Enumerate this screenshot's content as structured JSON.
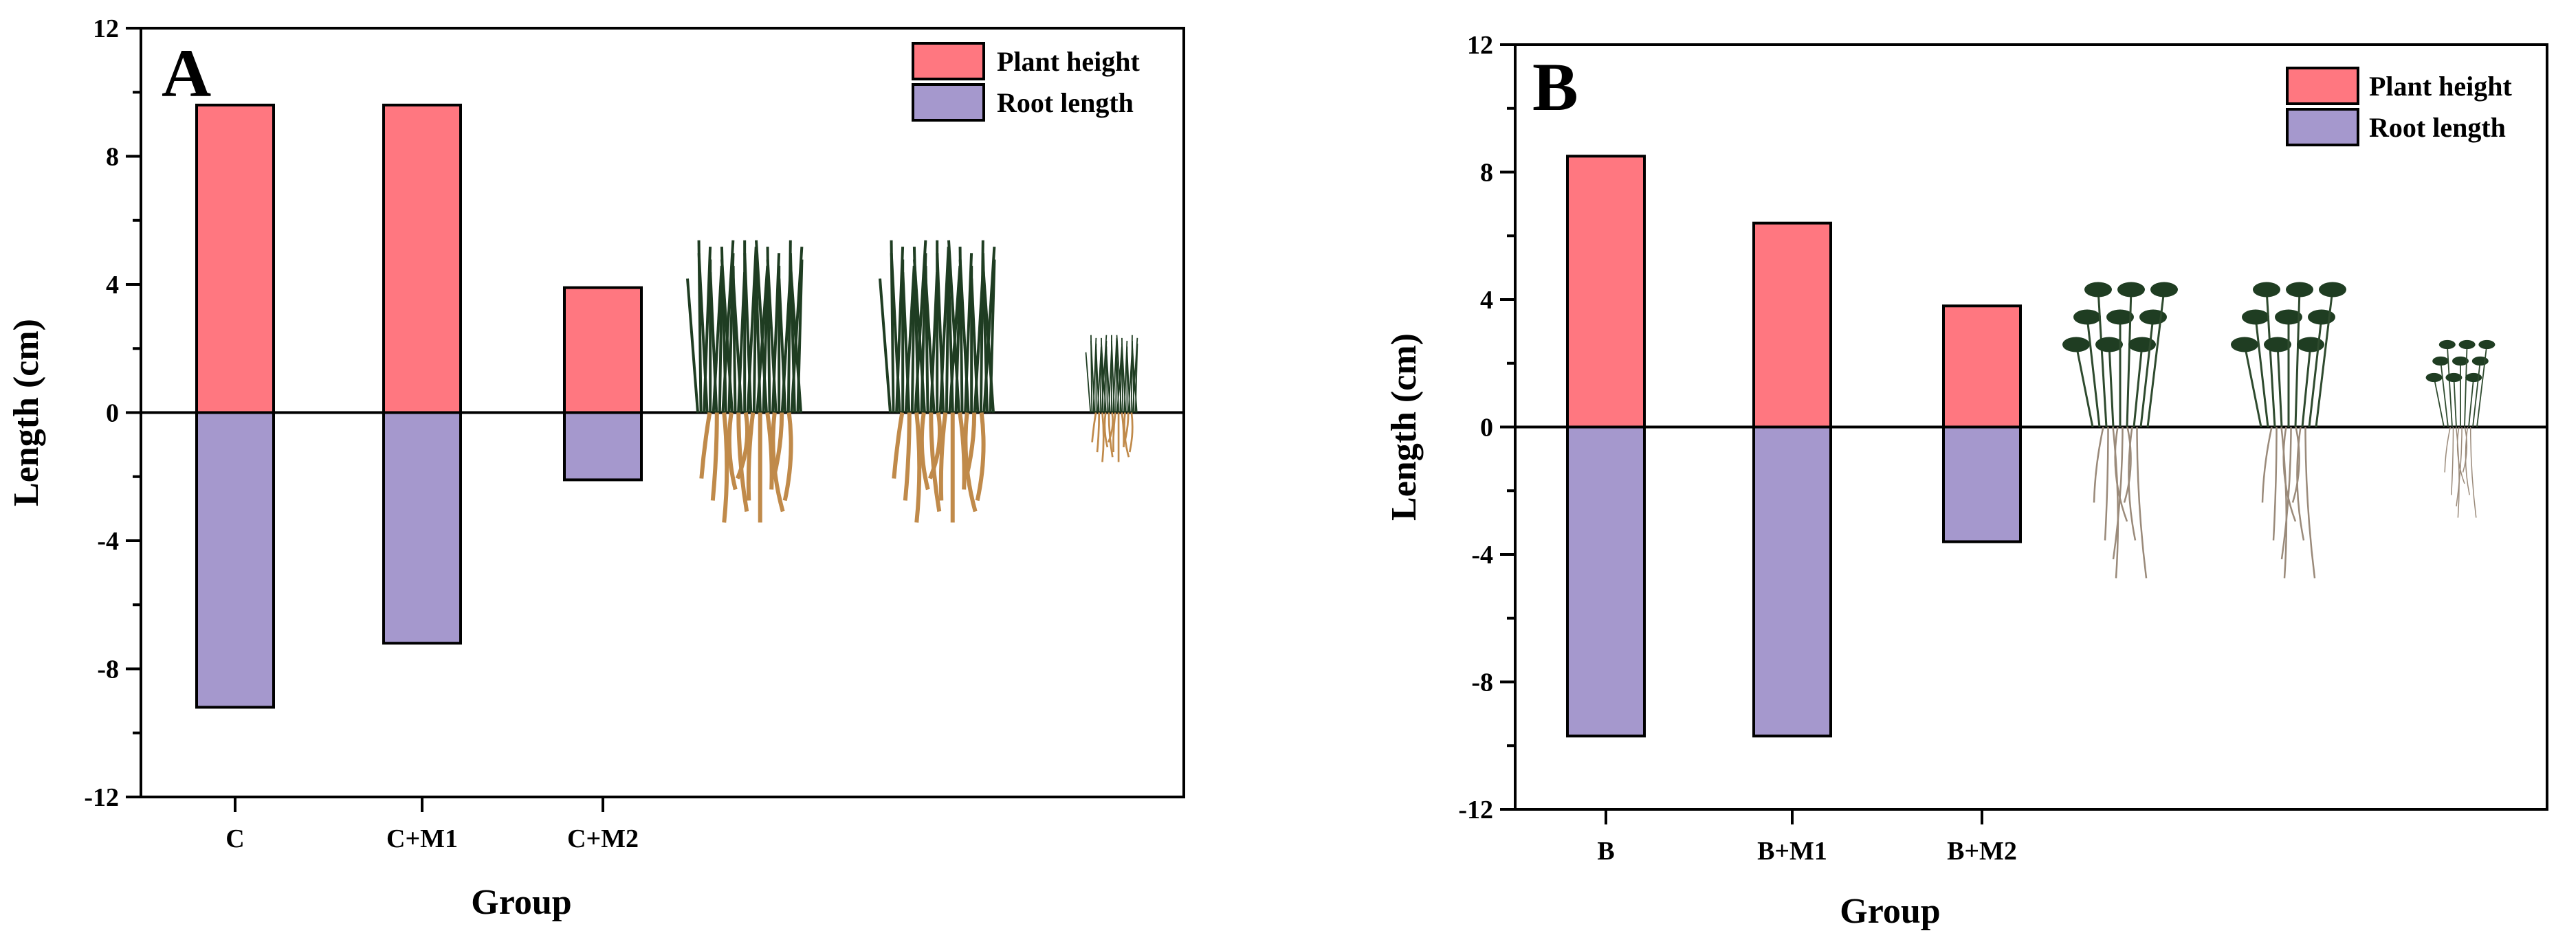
{
  "colors": {
    "plant_height": "#ff7780",
    "root_length": "#a598cd",
    "axis": "#000000",
    "plant_green": "#1f3d22",
    "root_tan": "#c08a4a"
  },
  "chart_data": [
    {
      "type": "bar",
      "panel_label": "A",
      "title": "",
      "xlabel": "Group",
      "ylabel": "Length (cm)",
      "ylim": [
        -12,
        12
      ],
      "yticks": [
        -12,
        -8,
        -4,
        0,
        4,
        8,
        12
      ],
      "ytick_labels": [
        "-12",
        "-8",
        "-4",
        "0",
        "4",
        "8",
        "12"
      ],
      "categories": [
        "C",
        "C+M1",
        "C+M2"
      ],
      "series": [
        {
          "name": "Plant height",
          "values": [
            9.6,
            9.6,
            3.9
          ]
        },
        {
          "name": "Root length",
          "values": [
            -9.2,
            -7.2,
            -2.1
          ]
        }
      ],
      "legend": {
        "position": "top-right",
        "entries": [
          "Plant height",
          "Root length"
        ]
      },
      "grid": false,
      "photo_icons": [
        "grass-seedling-icon",
        "grass-seedling-icon",
        "grass-seedling-small-icon"
      ]
    },
    {
      "type": "bar",
      "panel_label": "B",
      "title": "",
      "xlabel": "Group",
      "ylabel": "Length (cm)",
      "ylim": [
        -12,
        12
      ],
      "yticks": [
        -12,
        -8,
        -4,
        0,
        4,
        8,
        12
      ],
      "ytick_labels": [
        "-12",
        "-8",
        "-4",
        "0",
        "4",
        "8",
        "12"
      ],
      "categories": [
        "B",
        "B+M1",
        "B+M2"
      ],
      "series": [
        {
          "name": "Plant height",
          "values": [
            8.5,
            6.4,
            3.8
          ]
        },
        {
          "name": "Root length",
          "values": [
            -9.7,
            -9.7,
            -3.6
          ]
        }
      ],
      "legend": {
        "position": "top-right",
        "entries": [
          "Plant height",
          "Root length"
        ]
      },
      "grid": false,
      "photo_icons": [
        "leafy-seedling-icon",
        "leafy-seedling-icon",
        "leafy-seedling-small-icon"
      ]
    }
  ]
}
